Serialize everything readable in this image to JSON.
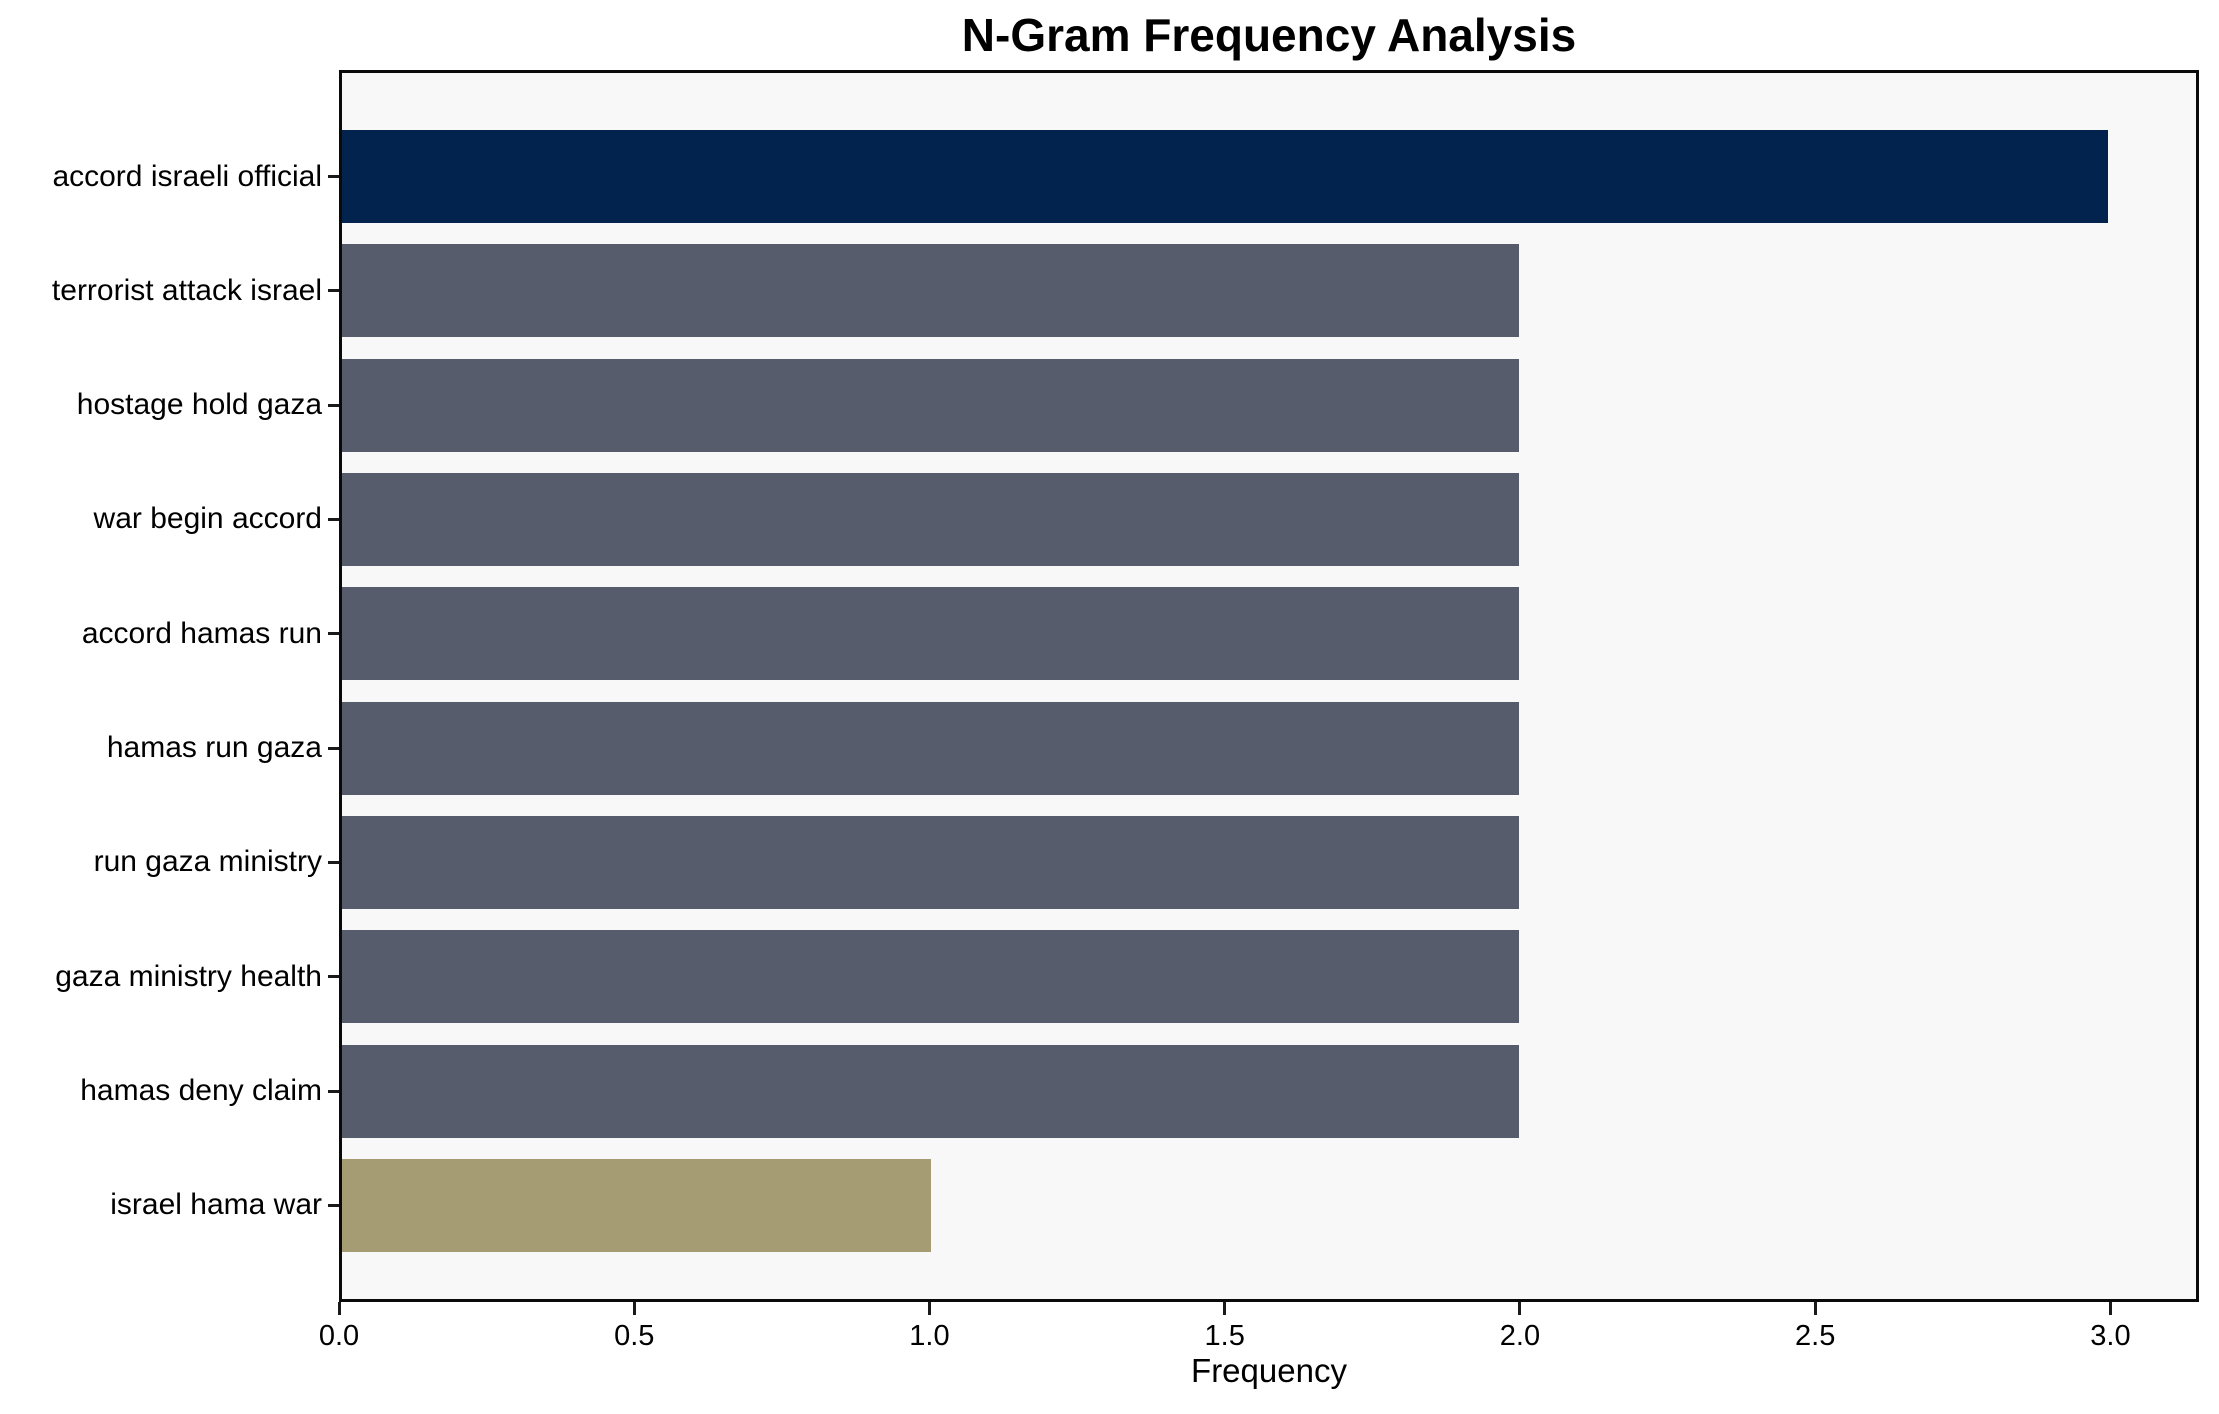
{
  "chart_data": {
    "type": "bar",
    "orientation": "horizontal",
    "title": "N-Gram Frequency Analysis",
    "xlabel": "Frequency",
    "ylabel": "",
    "categories": [
      "accord israeli official",
      "terrorist attack israel",
      "hostage hold gaza",
      "war begin accord",
      "accord hamas run",
      "hamas run gaza",
      "run gaza ministry",
      "gaza ministry health",
      "hamas deny claim",
      "israel hama war"
    ],
    "values": [
      3,
      2,
      2,
      2,
      2,
      2,
      2,
      2,
      2,
      1
    ],
    "bar_colors": [
      "#02234e",
      "#565c6b",
      "#565c6b",
      "#565c6b",
      "#565c6b",
      "#565c6b",
      "#565c6b",
      "#565c6b",
      "#565c6b",
      "#a59c74"
    ],
    "x_ticks": [
      0.0,
      0.5,
      1.0,
      1.5,
      2.0,
      2.5,
      3.0
    ],
    "x_tick_labels": [
      "0.0",
      "0.5",
      "1.0",
      "1.5",
      "2.0",
      "2.5",
      "3.0"
    ],
    "xlim": [
      0,
      3.15
    ],
    "grid": false,
    "legend": null,
    "colors": {
      "highlight_bar": "#02234e",
      "default_bar": "#565c6b",
      "low_bar": "#a59c74",
      "plot_background": "#f8f8f8",
      "figure_background": "#ffffff",
      "spine": "#0a0a0a",
      "text": "#000000"
    }
  }
}
